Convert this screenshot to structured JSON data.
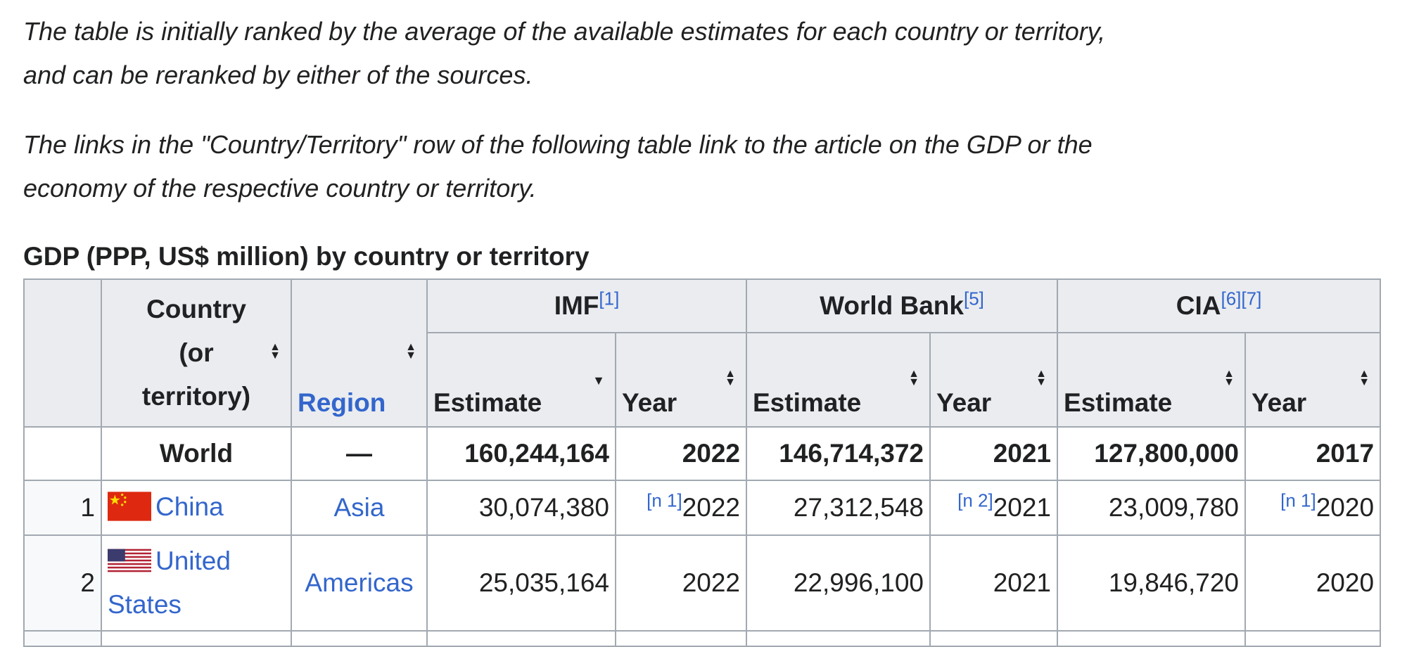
{
  "intro": {
    "paragraph1": "The table is initially ranked by the average of the available estimates for each country or territory, and can be reranked by either of the sources.",
    "paragraph2": "The links in the \"Country/Territory\" row of the following table link to the article on the GDP or the economy of the respective country or territory."
  },
  "table": {
    "caption": "GDP (PPP, US$ million) by country or territory",
    "headers": {
      "country": "Country (or territory)",
      "region": "Region",
      "imf": "IMF",
      "imf_ref": "[1]",
      "world_bank": "World Bank",
      "world_bank_ref": "[5]",
      "cia": "CIA",
      "cia_ref_1": "[6]",
      "cia_ref_2": "[7]",
      "estimate": "Estimate",
      "year": "Year"
    },
    "world": {
      "name": "World",
      "region": "—",
      "imf_estimate": "160,244,164",
      "imf_year": "2022",
      "wb_estimate": "146,714,372",
      "wb_year": "2021",
      "cia_estimate": "127,800,000",
      "cia_year": "2017"
    },
    "rows": [
      {
        "rank": "1",
        "country": "China",
        "flag": "china-flag-icon",
        "region": "Asia",
        "imf_estimate": "30,074,380",
        "imf_note": "[n 1]",
        "imf_year": "2022",
        "wb_estimate": "27,312,548",
        "wb_note": "[n 2]",
        "wb_year": "2021",
        "cia_estimate": "23,009,780",
        "cia_note": "[n 1]",
        "cia_year": "2020"
      },
      {
        "rank": "2",
        "country": "United States",
        "flag": "united-states-flag-icon",
        "region": "Americas",
        "imf_estimate": "25,035,164",
        "imf_year": "2022",
        "wb_estimate": "22,996,100",
        "wb_year": "2021",
        "cia_estimate": "19,846,720",
        "cia_year": "2020"
      }
    ]
  },
  "colors": {
    "link": "#3366cc",
    "header_bg": "#eaecf0",
    "border": "#a2a9b1",
    "text": "#202122"
  }
}
